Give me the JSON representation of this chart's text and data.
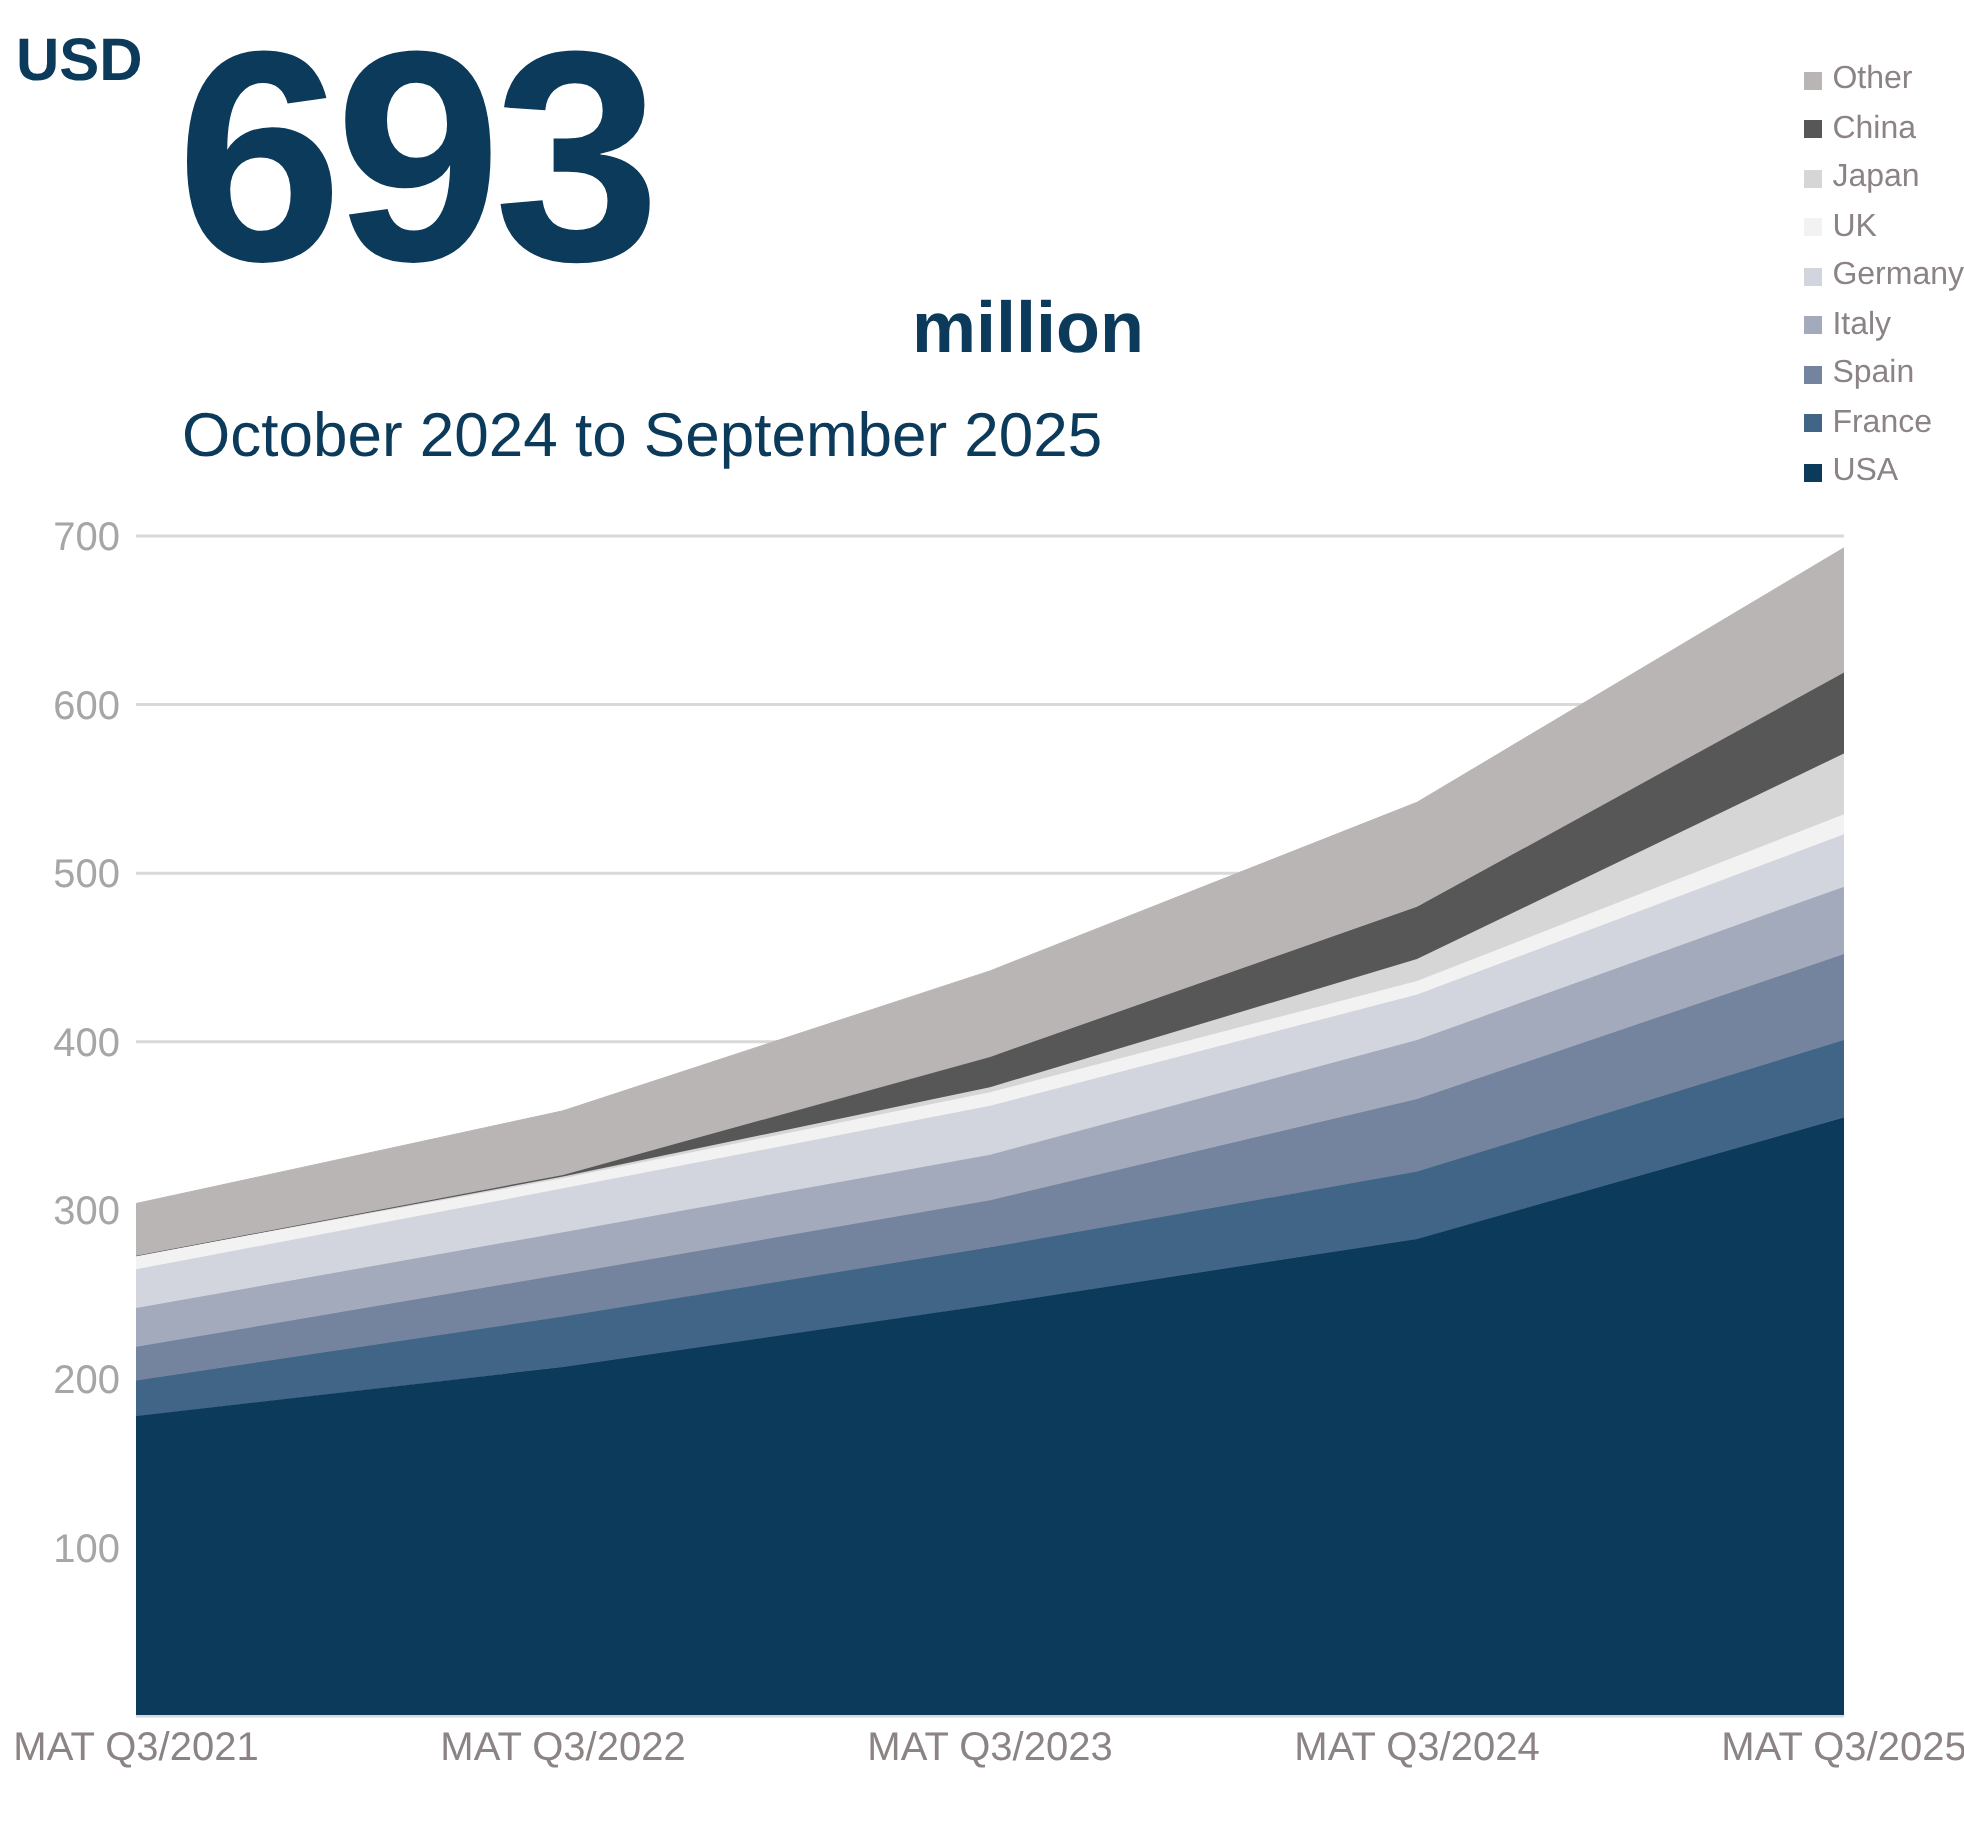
{
  "chart_data": {
    "type": "area",
    "title": "693",
    "subtitle": "October 2024 to September 2025",
    "annotations": [
      "USD",
      "million"
    ],
    "categories": [
      "MAT Q3/2021",
      "MAT Q3/2022",
      "MAT Q3/2023",
      "MAT Q3/2024",
      "MAT Q3/2025"
    ],
    "stacked": true,
    "ylim": [
      0,
      700
    ],
    "yticks": [
      100,
      200,
      300,
      400,
      500,
      600,
      700
    ],
    "grid": "y",
    "legend": "top right",
    "series": [
      {
        "name": "USA",
        "color": "#0b3a5a",
        "values": [
          178,
          207,
          244,
          283,
          355
        ]
      },
      {
        "name": "France",
        "color": "#416586",
        "values": [
          21,
          30,
          34,
          40,
          46
        ]
      },
      {
        "name": "Spain",
        "color": "#74849e",
        "values": [
          20,
          25,
          28,
          43,
          51
        ]
      },
      {
        "name": "Italy",
        "color": "#a3aabb",
        "values": [
          23,
          25,
          27,
          35,
          40
        ]
      },
      {
        "name": "Germany",
        "color": "#d2d5de",
        "values": [
          23,
          26,
          29,
          27,
          31
        ]
      },
      {
        "name": "UK",
        "color": "#f2f2f2",
        "values": [
          8,
          6,
          8,
          8,
          12
        ]
      },
      {
        "name": "Japan",
        "color": "#d6d6d6",
        "values": [
          0,
          1,
          3,
          13,
          36
        ]
      },
      {
        "name": "China",
        "color": "#575757",
        "values": [
          0,
          1,
          18,
          31,
          48
        ]
      },
      {
        "name": "Other",
        "color": "#b9b5b4",
        "values": [
          31,
          38,
          51,
          62,
          74
        ]
      }
    ]
  }
}
